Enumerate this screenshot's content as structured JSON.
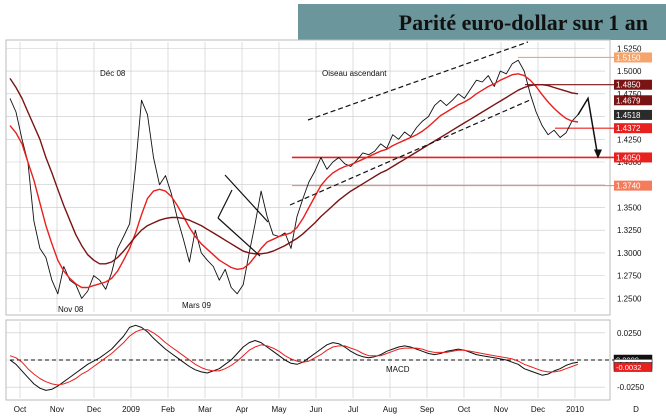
{
  "title": "Parité euro-dollar sur 1 an",
  "colors": {
    "title_bg": "#6b969b",
    "price": "#111111",
    "ma_short": "#e8201e",
    "ma_long": "#7a1414",
    "resistance": "#e8201e",
    "support_light": "#f47c5c",
    "level_top": "#f5a46b",
    "macd_line": "#111111",
    "macd_signal": "#e8201e",
    "grid": "#c9c9c9",
    "label_dark": "#2b2b2b",
    "label_red": "#e8201e"
  },
  "chart_data": [
    {
      "type": "line",
      "title": "Parité euro-dollar sur 1 an",
      "x_labels": [
        "Oct",
        "Nov",
        "Dec",
        "2009",
        "Feb",
        "Mar",
        "Apr",
        "May",
        "Jun",
        "Jul",
        "Aug",
        "Sep",
        "Oct",
        "Nov",
        "Dec",
        "2010",
        "D"
      ],
      "y_ticks": [
        "1.2500",
        "1.2750",
        "1.3000",
        "1.3250",
        "1.3500",
        "1.3750",
        "1.4000",
        "1.4250",
        "1.4500",
        "1.4750",
        "1.5000",
        "1.5250"
      ],
      "ylim": [
        1.235,
        1.532
      ],
      "grid": true,
      "series": [
        {
          "role": "price",
          "values": [
            1.47,
            1.455,
            1.425,
            1.4,
            1.335,
            1.305,
            1.295,
            1.27,
            1.255,
            1.285,
            1.27,
            1.265,
            1.25,
            1.258,
            1.275,
            1.27,
            1.26,
            1.278,
            1.305,
            1.318,
            1.332,
            1.395,
            1.468,
            1.452,
            1.405,
            1.375,
            1.385,
            1.365,
            1.338,
            1.315,
            1.29,
            1.325,
            1.3,
            1.292,
            1.285,
            1.27,
            1.282,
            1.262,
            1.255,
            1.265,
            1.3,
            1.332,
            1.368,
            1.34,
            1.32,
            1.318,
            1.322,
            1.305,
            1.34,
            1.36,
            1.378,
            1.39,
            1.405,
            1.392,
            1.4,
            1.405,
            1.398,
            1.395,
            1.402,
            1.41,
            1.408,
            1.412,
            1.42,
            1.415,
            1.43,
            1.425,
            1.433,
            1.428,
            1.438,
            1.445,
            1.45,
            1.462,
            1.468,
            1.462,
            1.468,
            1.475,
            1.47,
            1.48,
            1.49,
            1.488,
            1.495,
            1.483,
            1.5,
            1.497,
            1.508,
            1.512,
            1.5,
            1.475,
            1.455,
            1.44,
            1.43,
            1.435,
            1.427,
            1.432,
            1.445,
            1.452
          ]
        },
        {
          "role": "moving-average-short",
          "values": [
            1.44,
            1.432,
            1.42,
            1.4,
            1.38,
            1.355,
            1.33,
            1.31,
            1.292,
            1.28,
            1.272,
            1.266,
            1.262,
            1.262,
            1.264,
            1.266,
            1.268,
            1.272,
            1.28,
            1.292,
            1.305,
            1.322,
            1.342,
            1.36,
            1.368,
            1.37,
            1.368,
            1.362,
            1.352,
            1.34,
            1.328,
            1.318,
            1.31,
            1.304,
            1.298,
            1.292,
            1.288,
            1.284,
            1.282,
            1.283,
            1.288,
            1.296,
            1.305,
            1.312,
            1.315,
            1.318,
            1.32,
            1.322,
            1.328,
            1.338,
            1.35,
            1.362,
            1.374,
            1.382,
            1.388,
            1.392,
            1.395,
            1.397,
            1.4,
            1.403,
            1.406,
            1.409,
            1.412,
            1.414,
            1.418,
            1.421,
            1.424,
            1.427,
            1.43,
            1.434,
            1.439,
            1.445,
            1.451,
            1.455,
            1.459,
            1.463,
            1.466,
            1.47,
            1.475,
            1.479,
            1.483,
            1.486,
            1.49,
            1.493,
            1.496,
            1.497,
            1.495,
            1.49,
            1.483,
            1.474,
            1.466,
            1.459,
            1.453,
            1.448,
            1.445,
            1.444
          ]
        },
        {
          "role": "moving-average-long",
          "values": [
            1.492,
            1.482,
            1.47,
            1.455,
            1.44,
            1.425,
            1.405,
            1.388,
            1.37,
            1.352,
            1.336,
            1.32,
            1.308,
            1.298,
            1.292,
            1.288,
            1.288,
            1.29,
            1.295,
            1.302,
            1.31,
            1.318,
            1.325,
            1.33,
            1.333,
            1.336,
            1.338,
            1.339,
            1.339,
            1.338,
            1.336,
            1.333,
            1.33,
            1.326,
            1.322,
            1.318,
            1.314,
            1.31,
            1.306,
            1.302,
            1.3,
            1.299,
            1.299,
            1.3,
            1.302,
            1.305,
            1.308,
            1.312,
            1.316,
            1.321,
            1.327,
            1.333,
            1.34,
            1.346,
            1.352,
            1.358,
            1.363,
            1.368,
            1.372,
            1.376,
            1.38,
            1.384,
            1.388,
            1.391,
            1.395,
            1.399,
            1.403,
            1.407,
            1.411,
            1.415,
            1.419,
            1.423,
            1.427,
            1.431,
            1.435,
            1.439,
            1.443,
            1.447,
            1.451,
            1.455,
            1.459,
            1.463,
            1.467,
            1.471,
            1.475,
            1.479,
            1.482,
            1.484,
            1.485,
            1.485,
            1.484,
            1.482,
            1.48,
            1.478,
            1.476,
            1.475
          ]
        }
      ],
      "levels": [
        {
          "label": "1.5150",
          "value": 1.515,
          "color_role": "level_top"
        },
        {
          "label": "1.4850",
          "value": 1.485,
          "color_role": "ma_long"
        },
        {
          "label": "1.4679",
          "value": 1.4679,
          "color_role": "ma_long"
        },
        {
          "label": "1.4518",
          "value": 1.4518,
          "color_role": "label_dark"
        },
        {
          "label": "1.4372",
          "value": 1.4372,
          "color_role": "ma_short"
        },
        {
          "label": "1.4050",
          "value": 1.405,
          "color_role": "resistance"
        },
        {
          "label": "1.3740",
          "value": 1.374,
          "color_role": "support_light"
        }
      ],
      "annotations": [
        "Déc 08",
        "Oiseau ascendant",
        "Nov 08",
        "Mars 09"
      ],
      "forecast": [
        1.4518,
        1.47,
        1.405
      ]
    },
    {
      "type": "line",
      "title": "MACD",
      "y_ticks": [
        "0.0250",
        "0.0000",
        "-0.0250"
      ],
      "ylim": [
        -0.035,
        0.035
      ],
      "value_labels": [
        "0.0000",
        "-0.0022",
        "-0.0032"
      ],
      "zero_line": true,
      "series": [
        {
          "role": "macd",
          "values": [
            0.0,
            -0.004,
            -0.01,
            -0.016,
            -0.022,
            -0.026,
            -0.028,
            -0.027,
            -0.024,
            -0.02,
            -0.016,
            -0.012,
            -0.008,
            -0.004,
            -0.001,
            0.002,
            0.006,
            0.01,
            0.016,
            0.022,
            0.03,
            0.032,
            0.03,
            0.026,
            0.02,
            0.015,
            0.01,
            0.006,
            0.002,
            -0.002,
            -0.006,
            -0.009,
            -0.011,
            -0.012,
            -0.01,
            -0.008,
            -0.004,
            0.0,
            0.006,
            0.012,
            0.016,
            0.018,
            0.016,
            0.012,
            0.008,
            0.004,
            0.0,
            -0.003,
            -0.004,
            -0.002,
            0.002,
            0.006,
            0.01,
            0.014,
            0.016,
            0.015,
            0.012,
            0.008,
            0.005,
            0.003,
            0.002,
            0.003,
            0.005,
            0.008,
            0.01,
            0.012,
            0.013,
            0.012,
            0.01,
            0.008,
            0.006,
            0.005,
            0.006,
            0.008,
            0.009,
            0.01,
            0.009,
            0.007,
            0.005,
            0.004,
            0.003,
            0.002,
            0.001,
            0.0,
            -0.002,
            -0.004,
            -0.008,
            -0.01,
            -0.012,
            -0.014,
            -0.013,
            -0.01,
            -0.008,
            -0.005,
            -0.003,
            -0.002
          ]
        },
        {
          "role": "macd-signal",
          "values": [
            0.004,
            0.002,
            -0.002,
            -0.008,
            -0.013,
            -0.017,
            -0.02,
            -0.022,
            -0.023,
            -0.022,
            -0.02,
            -0.017,
            -0.013,
            -0.01,
            -0.006,
            -0.002,
            0.002,
            0.006,
            0.011,
            0.016,
            0.022,
            0.026,
            0.028,
            0.028,
            0.025,
            0.021,
            0.016,
            0.012,
            0.008,
            0.004,
            0.0,
            -0.004,
            -0.007,
            -0.009,
            -0.01,
            -0.01,
            -0.008,
            -0.005,
            -0.001,
            0.004,
            0.009,
            0.012,
            0.014,
            0.013,
            0.011,
            0.008,
            0.004,
            0.001,
            -0.001,
            -0.002,
            -0.001,
            0.002,
            0.005,
            0.009,
            0.012,
            0.013,
            0.013,
            0.011,
            0.009,
            0.006,
            0.004,
            0.004,
            0.004,
            0.006,
            0.008,
            0.01,
            0.011,
            0.011,
            0.011,
            0.01,
            0.008,
            0.007,
            0.007,
            0.007,
            0.008,
            0.009,
            0.009,
            0.008,
            0.007,
            0.006,
            0.005,
            0.004,
            0.003,
            0.002,
            0.001,
            -0.001,
            -0.004,
            -0.006,
            -0.008,
            -0.01,
            -0.011,
            -0.011,
            -0.01,
            -0.008,
            -0.006,
            -0.004
          ]
        }
      ]
    }
  ]
}
